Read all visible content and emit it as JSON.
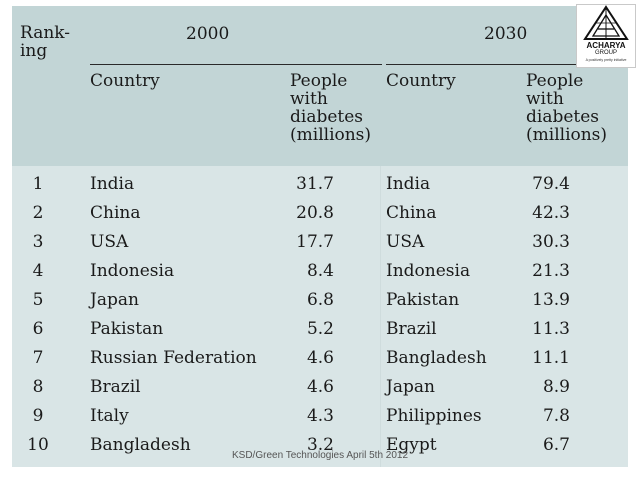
{
  "header": {
    "ranking_line1": "Rank-",
    "ranking_line2": "ing",
    "year_left": "2000",
    "year_right": "2030",
    "country_label": "Country",
    "people_line1": "People",
    "people_line2": "with",
    "people_line3": "diabetes",
    "people_line4": "(millions)"
  },
  "rows": [
    {
      "rank": "1",
      "c2000": "India",
      "v2000": "31.7",
      "c2030": "India",
      "v2030": "79.4"
    },
    {
      "rank": "2",
      "c2000": "China",
      "v2000": "20.8",
      "c2030": "China",
      "v2030": "42.3"
    },
    {
      "rank": "3",
      "c2000": "USA",
      "v2000": "17.7",
      "c2030": "USA",
      "v2030": "30.3"
    },
    {
      "rank": "4",
      "c2000": "Indonesia",
      "v2000": "8.4",
      "c2030": "Indonesia",
      "v2030": "21.3"
    },
    {
      "rank": "5",
      "c2000": "Japan",
      "v2000": "6.8",
      "c2030": "Pakistan",
      "v2030": "13.9"
    },
    {
      "rank": "6",
      "c2000": "Pakistan",
      "v2000": "5.2",
      "c2030": "Brazil",
      "v2030": "11.3"
    },
    {
      "rank": "7",
      "c2000": "Russian Federation",
      "v2000": "4.6",
      "c2030": "Bangladesh",
      "v2030": "11.1"
    },
    {
      "rank": "8",
      "c2000": "Brazil",
      "v2000": "4.6",
      "c2030": "Japan",
      "v2030": "8.9"
    },
    {
      "rank": "9",
      "c2000": "Italy",
      "v2000": "4.3",
      "c2030": "Philippines",
      "v2030": "7.8"
    },
    {
      "rank": "10",
      "c2000": "Bangladesh",
      "v2000": "3.2",
      "c2030": "Egypt",
      "v2030": "6.7"
    }
  ],
  "logo": {
    "name": "ACHARYA",
    "sub": "GROUP",
    "tagline": "A positively pretty initiative",
    "icon": "triangle-a-emblem-icon"
  },
  "footer": {
    "text": "KSD/Green Technologies  April 5th 2012"
  },
  "colors": {
    "header_band": "#c2d5d6",
    "body_band": "#d9e5e6"
  }
}
